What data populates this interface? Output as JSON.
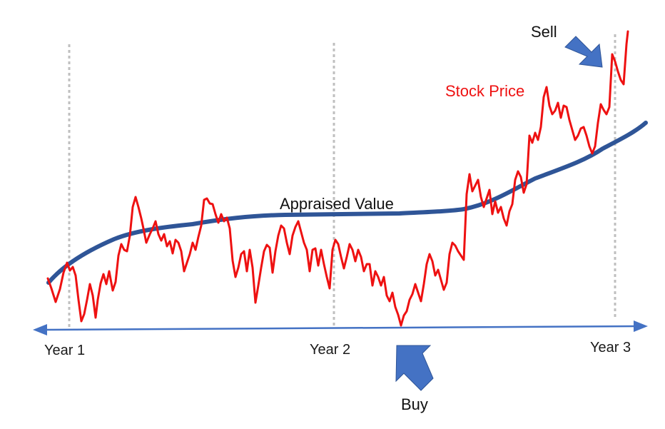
{
  "labels": {
    "sell": "Sell",
    "buy": "Buy",
    "stock_price": "Stock Price",
    "appraised_value": "Appraised Value",
    "year1": "Year 1",
    "year2": "Year 2",
    "year3": "Year 3"
  },
  "colors": {
    "stock_price": "#ee1111",
    "appraised_value": "#2f5597",
    "timeline": "#4472c4",
    "arrow": "#4472c4",
    "divider": "#bfbfbf"
  },
  "icons": {
    "sell_arrow": "arrow-down-right-icon",
    "buy_arrow": "arrow-up-left-icon"
  }
}
